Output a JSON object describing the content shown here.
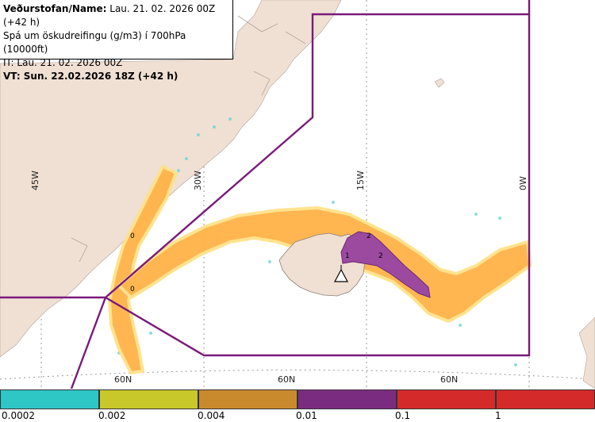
{
  "info": {
    "agency_label": "Veðurstofan/Name:",
    "run": "Lau. 21. 02. 2026 00Z (+42 h)",
    "product": "Spá um öskudreifingu (g/m3) í 700hPa (10000ft)",
    "issue_time": "IT: Lau. 21. 02. 2026 00Z",
    "valid_time": "VT: Sun. 22.02.2026 18Z (+42 h)"
  },
  "grid_labels": {
    "lon": [
      "45W",
      "30W",
      "15W",
      "0W"
    ],
    "lat": [
      "60N",
      "60N",
      "60N"
    ]
  },
  "contour_labels": [
    "0",
    "0",
    "1",
    "2",
    "2"
  ],
  "legend": {
    "thresholds": [
      "0.0002",
      "0.002",
      "0.004",
      "0.01",
      "0.1",
      "1"
    ],
    "colors": [
      "#2fc6c6",
      "#c8c82a",
      "#c98a2e",
      "#7a2c80",
      "#d42a2a"
    ]
  },
  "colors": {
    "land": "#f0dfd3",
    "ocean": "#ffffff",
    "boundary": "#7a1a7a",
    "ash_low": "#ffb347",
    "ash_high": "#9b4aa0",
    "trace": "#6fd6d6"
  }
}
